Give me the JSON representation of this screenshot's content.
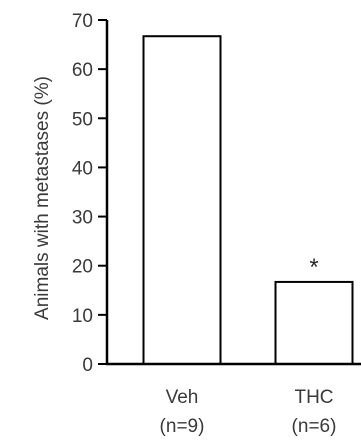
{
  "chart_data": {
    "type": "bar",
    "categories": [
      "Veh",
      "THC"
    ],
    "category_sublabels": [
      "(n=9)",
      "(n=6)"
    ],
    "values": [
      66.7,
      16.7
    ],
    "annotations": [
      "",
      "*"
    ],
    "ylabel": "Animals with metastases (%)",
    "ylim": [
      0,
      70
    ],
    "yticks": [
      0,
      10,
      20,
      30,
      40,
      50,
      60,
      70
    ],
    "grid": false,
    "colors": {
      "bar_fill": "#ffffff",
      "bar_stroke": "#000000",
      "axis": "#000000",
      "text": "#3a3a3a"
    }
  }
}
